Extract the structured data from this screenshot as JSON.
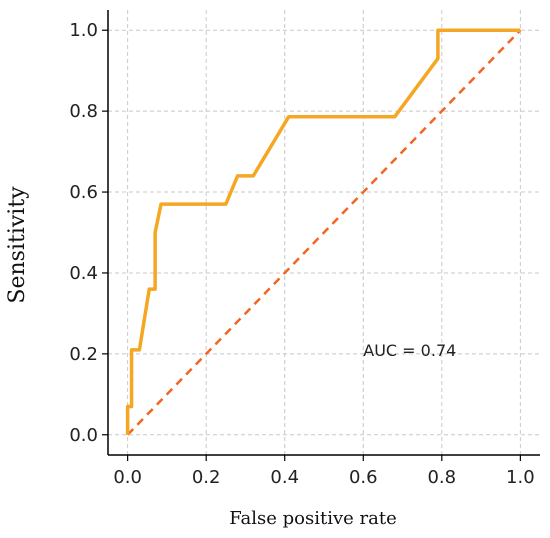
{
  "chart_data": {
    "type": "line",
    "title": "",
    "xlabel": "False positive rate",
    "ylabel": "Sensitivity",
    "xlim": [
      -0.05,
      1.05
    ],
    "ylim": [
      -0.05,
      1.05
    ],
    "xticks": [
      0.0,
      0.2,
      0.4,
      0.6,
      0.8,
      1.0
    ],
    "yticks": [
      0.0,
      0.2,
      0.4,
      0.6,
      0.8,
      1.0
    ],
    "tick_labels_x": [
      "0.0",
      "0.2",
      "0.4",
      "0.6",
      "0.8",
      "1.0"
    ],
    "tick_labels_y": [
      "0.0",
      "0.2",
      "0.4",
      "0.6",
      "0.8",
      "1.0"
    ],
    "grid": true,
    "series": [
      {
        "color": "#f5a623",
        "style": "solid",
        "x": [
          0.0,
          0.0,
          0.01,
          0.01,
          0.03,
          0.055,
          0.07,
          0.07,
          0.085,
          0.25,
          0.28,
          0.32,
          0.41,
          0.68,
          0.79,
          0.79,
          1.0
        ],
        "y": [
          0.0,
          0.07,
          0.07,
          0.21,
          0.21,
          0.36,
          0.36,
          0.5,
          0.57,
          0.57,
          0.64,
          0.64,
          0.786,
          0.786,
          0.93,
          1.0,
          1.0
        ]
      },
      {
        "color": "#f26522",
        "style": "dashed",
        "x": [
          0.0,
          1.0
        ],
        "y": [
          0.0,
          1.0
        ]
      }
    ],
    "annotations": [
      {
        "text": "AUC = 0.74",
        "x": 0.6,
        "y": 0.21
      }
    ]
  }
}
